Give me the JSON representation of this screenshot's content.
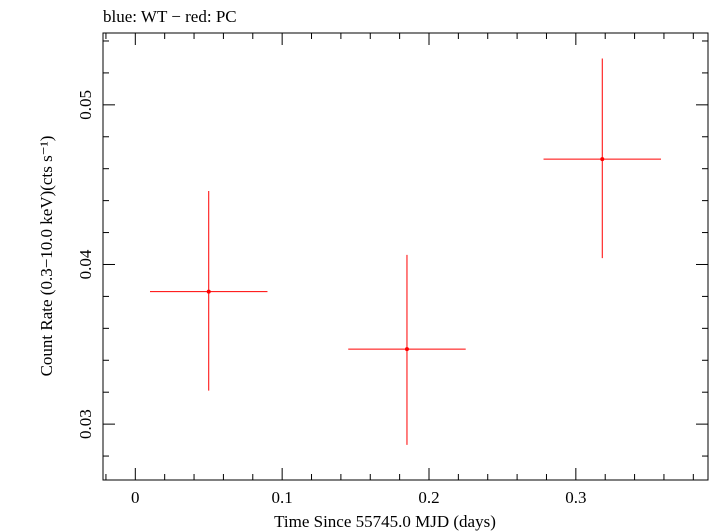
{
  "chart_data": {
    "type": "scatter",
    "title": "blue: WT − red: PC",
    "xlabel": "Time Since 55745.0 MJD (days)",
    "ylabel": "Count Rate (0.3−10.0 keV)(cts s⁻¹)",
    "xlim": [
      -0.022,
      0.39
    ],
    "ylim": [
      0.0265,
      0.0545
    ],
    "x_ticks": [
      0,
      0.1,
      0.2,
      0.3
    ],
    "x_tick_labels": [
      "0",
      "0.1",
      "0.2",
      "0.3"
    ],
    "y_ticks": [
      0.03,
      0.04,
      0.05
    ],
    "y_tick_labels": [
      "0.03",
      "0.04",
      "0.05"
    ],
    "grid": false,
    "series": [
      {
        "color": "#ff0000",
        "points": [
          {
            "x": 0.05,
            "xerr": 0.04,
            "y": 0.0383,
            "yerr_low": 0.0062,
            "yerr_high": 0.0063
          },
          {
            "x": 0.185,
            "xerr": 0.04,
            "y": 0.0347,
            "yerr_low": 0.006,
            "yerr_high": 0.0059
          },
          {
            "x": 0.318,
            "xerr": 0.04,
            "y": 0.0466,
            "yerr_low": 0.0062,
            "yerr_high": 0.0063
          }
        ]
      }
    ]
  }
}
